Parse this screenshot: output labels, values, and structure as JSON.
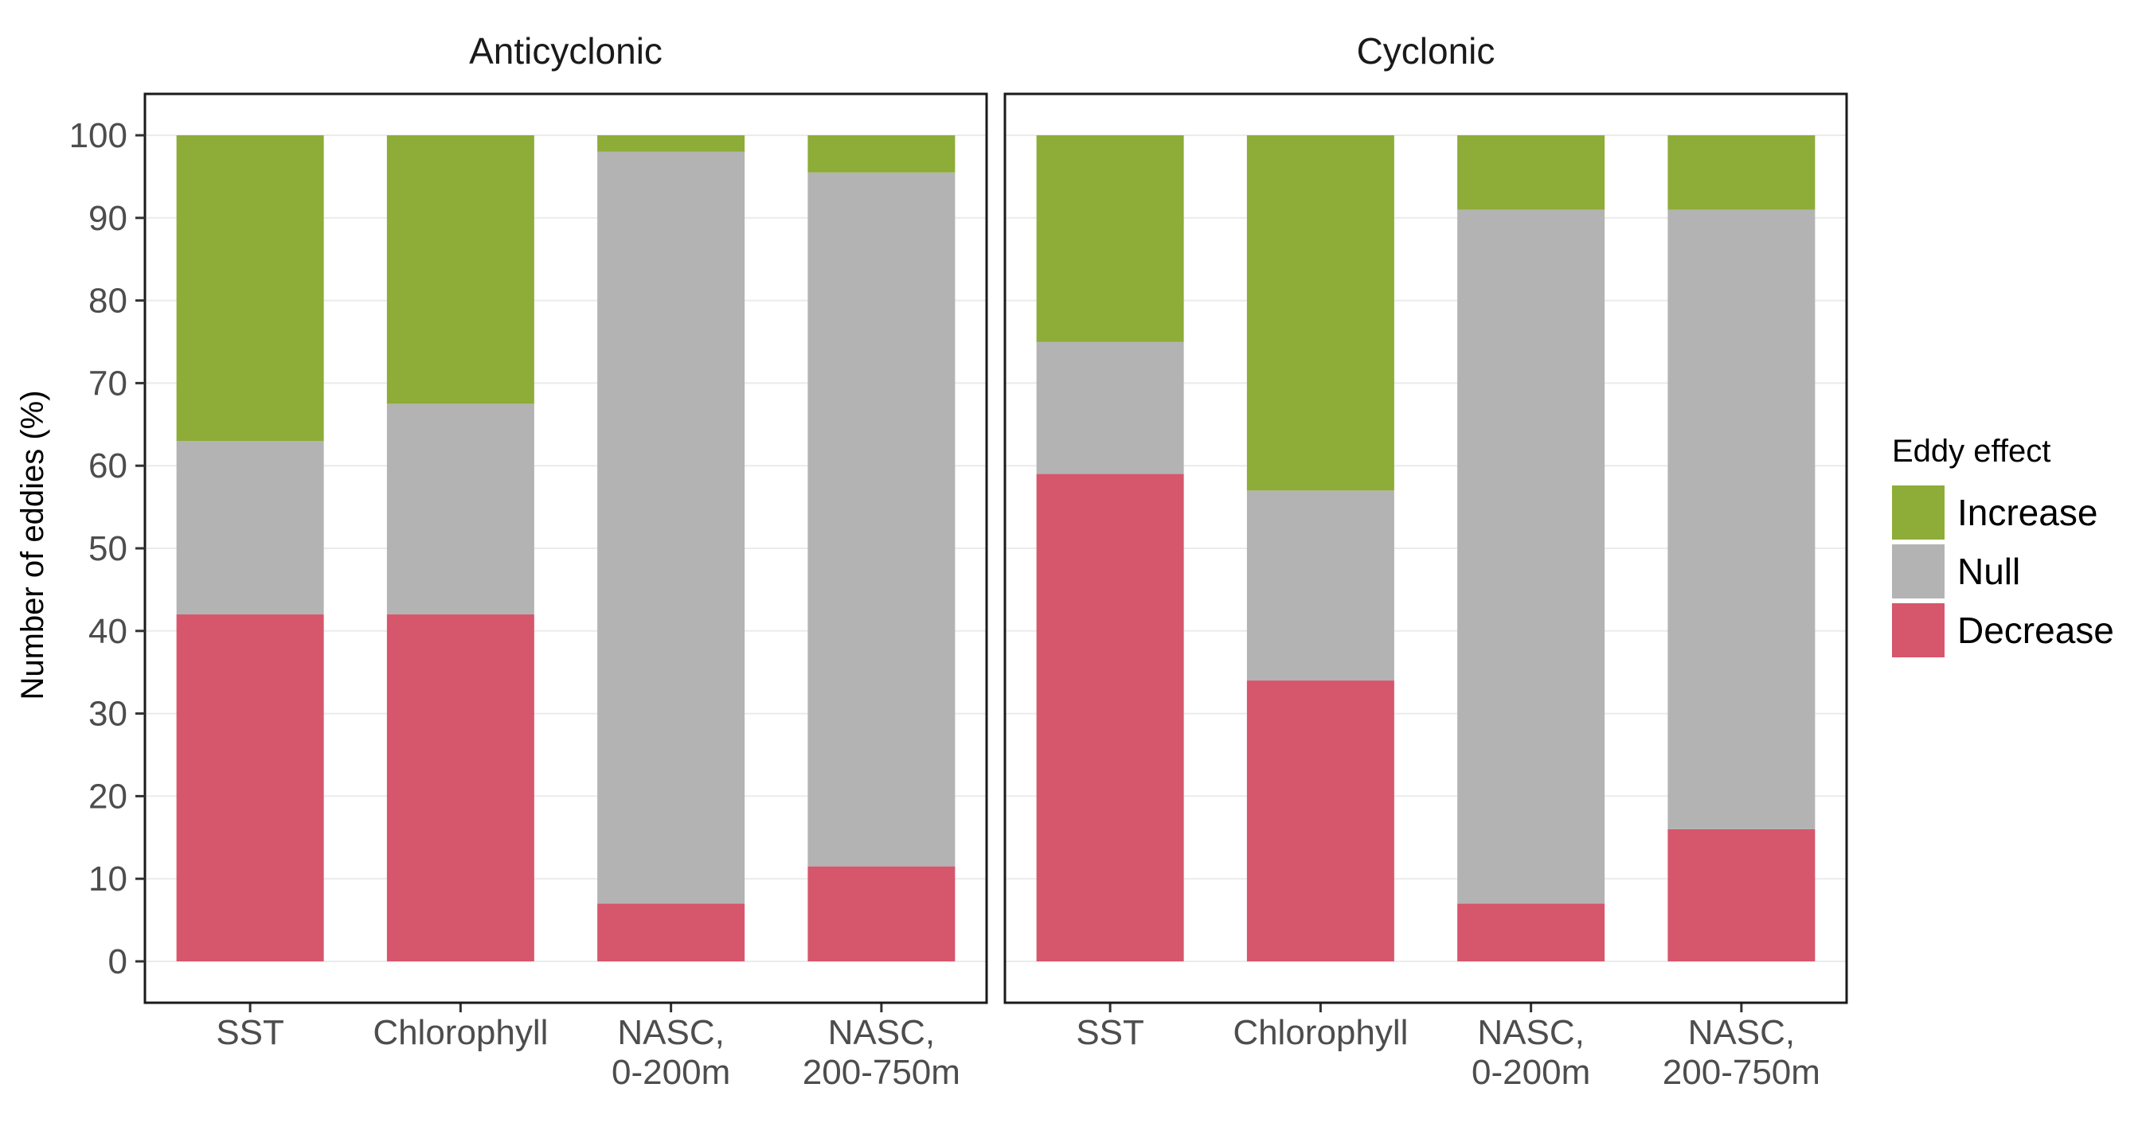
{
  "chart_data": {
    "type": "bar",
    "stacked": true,
    "ylabel": "Number of eddies (%)",
    "ylim": [
      0,
      105
    ],
    "yticks": [
      0,
      10,
      20,
      30,
      40,
      50,
      60,
      70,
      80,
      90,
      100
    ],
    "grid": true,
    "legend": {
      "title": "Eddy effect",
      "position": "right",
      "entries": [
        "Increase",
        "Null",
        "Decrease"
      ]
    },
    "colors": {
      "Increase": "#8DAC38",
      "Null": "#B3B3B3",
      "Decrease": "#D6566C"
    },
    "categories": [
      "SST",
      "Chlorophyll",
      "NASC,\n0-200m",
      "NASC,\n200-750m"
    ],
    "panels": [
      {
        "title": "Anticyclonic",
        "series": [
          {
            "name": "Decrease",
            "values": [
              42,
              42,
              7,
              11.5
            ]
          },
          {
            "name": "Null",
            "values": [
              21,
              25.5,
              91,
              84
            ]
          },
          {
            "name": "Increase",
            "values": [
              37,
              32.5,
              2,
              4.5
            ]
          }
        ]
      },
      {
        "title": "Cyclonic",
        "series": [
          {
            "name": "Decrease",
            "values": [
              59,
              34,
              7,
              16
            ]
          },
          {
            "name": "Null",
            "values": [
              16,
              23,
              84,
              75
            ]
          },
          {
            "name": "Increase",
            "values": [
              25,
              43,
              9,
              9
            ]
          }
        ]
      }
    ]
  }
}
